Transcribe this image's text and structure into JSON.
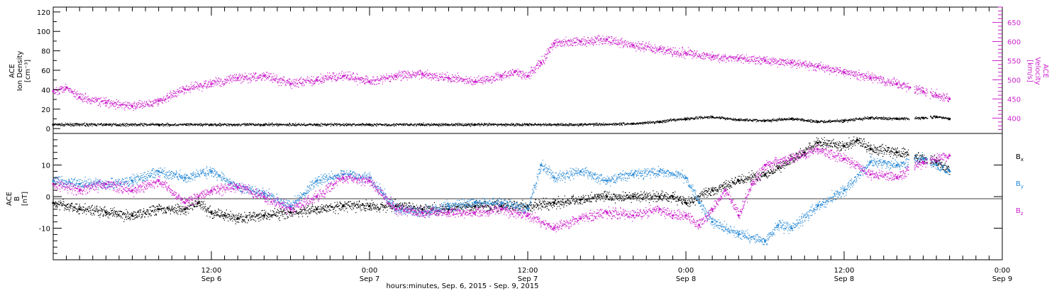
{
  "colors": {
    "black": "#000000",
    "magenta": "#cc22cc",
    "blue": "#2a8ad6"
  },
  "time_axis": {
    "range_hours": [
      0,
      72
    ],
    "ticks": [
      {
        "hour": 12,
        "time": "12:00",
        "date": "Sep 6"
      },
      {
        "hour": 24,
        "time": "0:00",
        "date": "Sep 7"
      },
      {
        "hour": 36,
        "time": "12:00",
        "date": "Sep 7"
      },
      {
        "hour": 48,
        "time": "0:00",
        "date": "Sep 8"
      },
      {
        "hour": 60,
        "time": "12:00",
        "date": "Sep 8"
      },
      {
        "hour": 72,
        "time": "0:00",
        "date": "Sep 9"
      }
    ],
    "xlabel": "hours:minutes, Sep.  6, 2015 - Sep.  9, 2015"
  },
  "chart_data": [
    {
      "type": "scatter",
      "panel": "top",
      "ylabel_left": [
        "ACE",
        "Ion Density",
        "[cm⁻³]"
      ],
      "ylabel_right": [
        "ACE",
        "Velocity",
        "[km/s]"
      ],
      "ylim_left": [
        -5,
        125
      ],
      "yticks_left": [
        0,
        20,
        40,
        60,
        80,
        100,
        120
      ],
      "ylim_right": [
        360,
        690
      ],
      "yticks_right": [
        400,
        450,
        500,
        550,
        600,
        650
      ],
      "series": [
        {
          "key": "density",
          "axis": "left",
          "color": "#000000",
          "x": [
            0,
            4,
            8,
            12,
            16,
            20,
            24,
            28,
            32,
            36,
            40,
            44,
            46,
            48,
            50,
            52,
            54,
            56,
            58,
            60,
            62,
            64,
            66,
            67,
            68
          ],
          "y": [
            4,
            4,
            4,
            4,
            4,
            4,
            4,
            4,
            4,
            4,
            4,
            5,
            7,
            10,
            12,
            9,
            8,
            10,
            7,
            8,
            11,
            10,
            11,
            12,
            10
          ]
        },
        {
          "key": "velocity",
          "axis": "right",
          "color": "#cc22cc",
          "x": [
            0,
            1,
            2,
            4,
            6,
            8,
            10,
            12,
            14,
            16,
            18,
            20,
            22,
            24,
            26,
            28,
            30,
            32,
            34,
            35,
            36,
            37,
            38,
            40,
            42,
            44,
            46,
            48,
            50,
            52,
            54,
            56,
            58,
            60,
            62,
            64,
            65,
            66,
            67,
            68
          ],
          "y": [
            470,
            480,
            455,
            440,
            430,
            445,
            475,
            490,
            505,
            510,
            490,
            500,
            510,
            495,
            510,
            515,
            505,
            495,
            510,
            520,
            510,
            545,
            595,
            600,
            605,
            590,
            580,
            570,
            560,
            555,
            550,
            545,
            535,
            520,
            505,
            490,
            480,
            470,
            460,
            450
          ]
        }
      ]
    },
    {
      "type": "scatter",
      "panel": "bottom",
      "ylabel_left": [
        "ACE",
        "B",
        "[nT]"
      ],
      "ylim": [
        -20,
        20
      ],
      "yticks": [
        -10,
        0,
        10
      ],
      "legend_placement": "right",
      "series": [
        {
          "name": "B",
          "sub": "x",
          "color": "#000000",
          "x": [
            0,
            2,
            4,
            6,
            8,
            10,
            11,
            12,
            13,
            14,
            16,
            18,
            20,
            22,
            24,
            26,
            28,
            30,
            32,
            34,
            36,
            38,
            40,
            42,
            44,
            46,
            47,
            48,
            50,
            52,
            54,
            55,
            56,
            57,
            58,
            60,
            61,
            62,
            64,
            66,
            67,
            68
          ],
          "y": [
            -2,
            -4,
            -5,
            -6,
            -4,
            -4,
            -2,
            -5,
            -6,
            -7,
            -6,
            -5,
            -4,
            -3,
            -3,
            -3,
            -4,
            -4,
            -3,
            -3,
            -3,
            -2,
            -1,
            0,
            0,
            0,
            0,
            -2,
            2,
            5,
            7,
            9,
            12,
            14,
            17,
            16,
            18,
            15,
            14,
            12,
            11,
            8
          ]
        },
        {
          "name": "B",
          "sub": "y",
          "color": "#2a8ad6",
          "x": [
            0,
            2,
            4,
            6,
            8,
            10,
            12,
            14,
            16,
            18,
            20,
            22,
            24,
            26,
            28,
            30,
            32,
            34,
            36,
            37,
            38,
            40,
            42,
            44,
            46,
            48,
            49,
            50,
            52,
            54,
            55,
            56,
            58,
            60,
            62,
            64,
            66,
            67,
            68
          ],
          "y": [
            5,
            4,
            4,
            5,
            8,
            6,
            8,
            3,
            1,
            -3,
            5,
            7,
            6,
            -4,
            -5,
            -3,
            -2,
            -2,
            -4,
            10,
            6,
            8,
            5,
            7,
            8,
            6,
            -2,
            -8,
            -12,
            -14,
            -9,
            -10,
            -3,
            2,
            11,
            10,
            12,
            10,
            8
          ]
        },
        {
          "name": "B",
          "sub": "z",
          "color": "#cc22cc",
          "x": [
            0,
            2,
            4,
            6,
            8,
            10,
            12,
            14,
            16,
            18,
            20,
            22,
            24,
            26,
            28,
            30,
            32,
            34,
            36,
            38,
            40,
            42,
            44,
            46,
            47,
            48,
            49,
            50,
            51,
            52,
            53,
            54,
            56,
            58,
            60,
            62,
            64,
            66,
            68
          ],
          "y": [
            4,
            2,
            4,
            2,
            5,
            -2,
            2,
            3,
            0,
            -4,
            0,
            6,
            5,
            -4,
            -5,
            -5,
            -5,
            -4,
            -6,
            -10,
            -7,
            -5,
            -6,
            -4,
            -6,
            -6,
            -9,
            -4,
            2,
            -6,
            4,
            10,
            12,
            15,
            12,
            7,
            6,
            11,
            13
          ]
        }
      ]
    }
  ]
}
